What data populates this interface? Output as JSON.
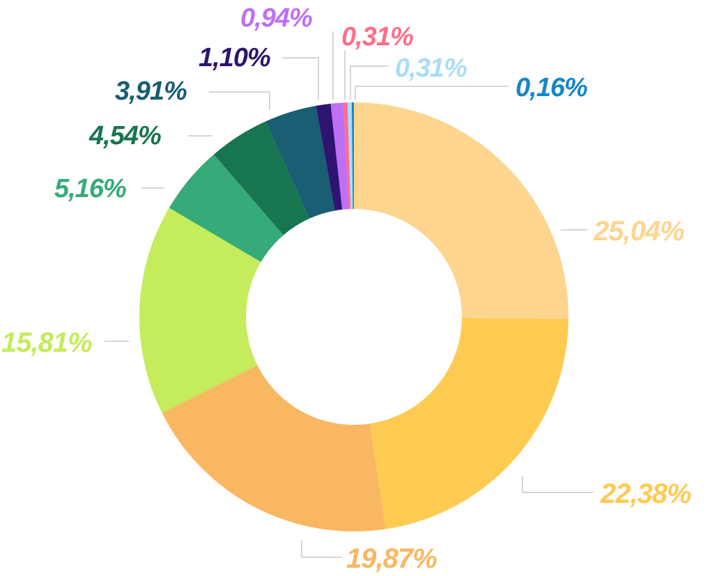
{
  "chart_data": {
    "type": "pie",
    "variant": "donut",
    "title": "",
    "start": "top",
    "direction": "clockwise",
    "slices": [
      {
        "label": "25,04%",
        "value": 25.04,
        "color": "#FDD58E"
      },
      {
        "label": "22,38%",
        "value": 22.38,
        "color": "#FDCB52"
      },
      {
        "label": "19,87%",
        "value": 19.87,
        "color": "#F9B762"
      },
      {
        "label": "15,81%",
        "value": 15.81,
        "color": "#C5EC5A"
      },
      {
        "label": "5,16%",
        "value": 5.16,
        "color": "#36AA78"
      },
      {
        "label": "4,54%",
        "value": 4.54,
        "color": "#17754F"
      },
      {
        "label": "3,91%",
        "value": 3.91,
        "color": "#195E72"
      },
      {
        "label": "1,10%",
        "value": 1.1,
        "color": "#2E1470"
      },
      {
        "label": "0,94%",
        "value": 0.94,
        "color": "#BF6EF6"
      },
      {
        "label": "0,31%",
        "value": 0.31,
        "color": "#FF6E8A"
      },
      {
        "label": "0,31%",
        "value": 0.31,
        "color": "#A8DDF8"
      },
      {
        "label": "0,16%",
        "value": 0.16,
        "color": "#1686C6"
      }
    ]
  }
}
